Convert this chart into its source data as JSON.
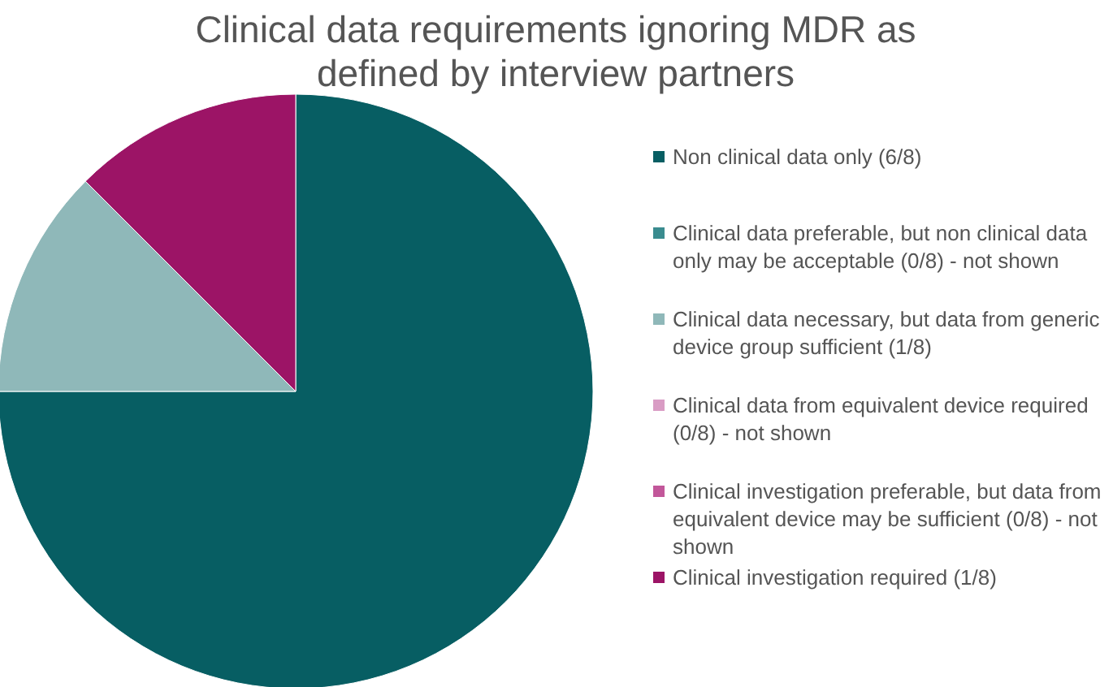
{
  "chart_data": {
    "type": "pie",
    "title": "Clinical data requirements ignoring MDR as defined by interview partners",
    "categories": [
      "Non clinical data only (6/8)",
      "Clinical data preferable, but non clinical data only may be acceptable (0/8) - not shown",
      "Clinical data necessary, but data from generic device group sufficient (1/8)",
      "Clinical data from equivalent device required (0/8) - not shown",
      "Clinical investigation preferable, but data from equivalent device may be sufficient (0/8) - not shown",
      "Clinical investigation required (1/8)"
    ],
    "values": [
      75,
      0,
      12.5,
      0,
      0,
      12.5
    ],
    "colors": [
      "#075e63",
      "#3a8c8f",
      "#8fb8b9",
      "#d99cc4",
      "#c2579a",
      "#9c1466"
    ],
    "legend": "right"
  }
}
